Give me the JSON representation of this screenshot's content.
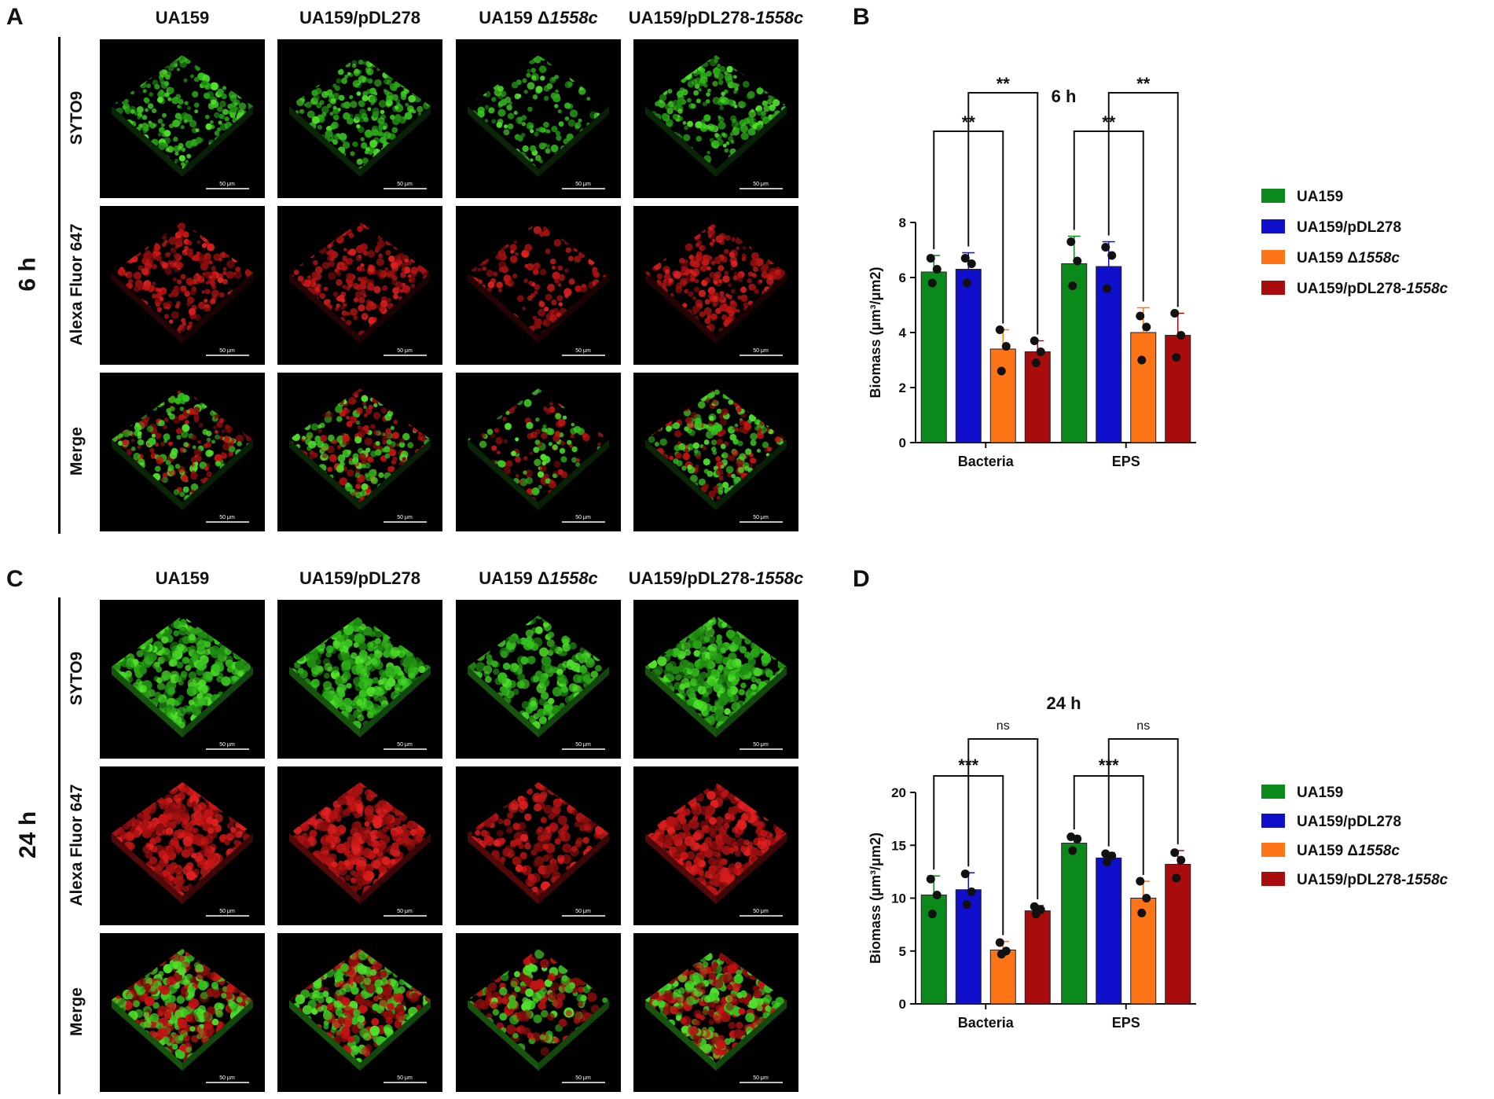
{
  "panel_letters": {
    "a": "A",
    "b": "B",
    "c": "C",
    "d": "D"
  },
  "image_grid": {
    "columns": [
      "UA159",
      "UA159/pDL278",
      "UA159 Δ",
      "UA159/pDL278-"
    ],
    "columns_italic_suffix": [
      "",
      "",
      "1558c",
      "1558c"
    ],
    "rows": [
      "SYTO9",
      "Alexa Fluor  647",
      "Merge"
    ],
    "scale_bar_label": "50 μm",
    "blocks": [
      {
        "time": "6 h"
      },
      {
        "time": "24 h"
      }
    ]
  },
  "chart_data": [
    {
      "type": "bar",
      "title": "6 h",
      "ylabel": "Biomass (μm³/μm2)",
      "categories": [
        "Bacteria",
        "EPS"
      ],
      "ylim": [
        0,
        8
      ],
      "yticks": [
        0,
        2,
        4,
        6,
        8
      ],
      "series": [
        {
          "name": "UA159",
          "name_italic": "",
          "color": "#0b8a1b",
          "values": [
            6.2,
            6.5
          ],
          "errors": [
            0.6,
            1.0
          ],
          "points": [
            [
              6.7,
              6.3,
              5.8
            ],
            [
              7.3,
              6.6,
              5.7
            ]
          ]
        },
        {
          "name": "UA159/pDL278",
          "name_italic": "",
          "color": "#1010cc",
          "values": [
            6.3,
            6.4
          ],
          "errors": [
            0.6,
            0.9
          ],
          "points": [
            [
              6.7,
              6.5,
              5.8
            ],
            [
              7.1,
              6.8,
              5.6
            ]
          ]
        },
        {
          "name": "UA159 Δ",
          "name_italic": "1558c",
          "color": "#ff7417",
          "values": [
            3.4,
            4.0
          ],
          "errors": [
            0.7,
            0.9
          ],
          "points": [
            [
              4.1,
              3.5,
              2.6
            ],
            [
              4.6,
              4.2,
              3.0
            ]
          ]
        },
        {
          "name": "UA159/pDL278-",
          "name_italic": "1558c",
          "color": "#a80c0c",
          "values": [
            3.3,
            3.9
          ],
          "errors": [
            0.4,
            0.8
          ],
          "points": [
            [
              3.7,
              3.3,
              2.9
            ],
            [
              4.7,
              3.9,
              3.1
            ]
          ]
        }
      ],
      "significance": [
        {
          "group": 0,
          "from": 0,
          "to": 2,
          "label": "**",
          "level": 1
        },
        {
          "group": 0,
          "from": 1,
          "to": 3,
          "label": "**",
          "level": 2
        },
        {
          "group": 1,
          "from": 0,
          "to": 2,
          "label": "**",
          "level": 1
        },
        {
          "group": 1,
          "from": 1,
          "to": 3,
          "label": "**",
          "level": 2
        }
      ]
    },
    {
      "type": "bar",
      "title": "24 h",
      "ylabel": "Biomass (μm³/μm2)",
      "categories": [
        "Bacteria",
        "EPS"
      ],
      "ylim": [
        0,
        20
      ],
      "yticks": [
        0,
        5,
        10,
        15,
        20
      ],
      "series": [
        {
          "name": "UA159",
          "name_italic": "",
          "color": "#0b8a1b",
          "values": [
            10.3,
            15.2
          ],
          "errors": [
            1.8,
            0.7
          ],
          "points": [
            [
              11.8,
              10.3,
              8.5
            ],
            [
              15.8,
              15.6,
              14.5
            ]
          ]
        },
        {
          "name": "UA159/pDL278",
          "name_italic": "",
          "color": "#1010cc",
          "values": [
            10.8,
            13.8
          ],
          "errors": [
            1.6,
            0.5
          ],
          "points": [
            [
              12.3,
              10.6,
              9.4
            ],
            [
              14.2,
              14.0,
              13.4
            ]
          ]
        },
        {
          "name": "UA159 Δ",
          "name_italic": "1558c",
          "color": "#ff7417",
          "values": [
            5.1,
            10.0
          ],
          "errors": [
            0.8,
            1.6
          ],
          "points": [
            [
              5.8,
              5.0,
              4.7
            ],
            [
              11.6,
              10.0,
              8.6
            ]
          ]
        },
        {
          "name": "UA159/pDL278-",
          "name_italic": "1558c",
          "color": "#a80c0c",
          "values": [
            8.8,
            13.2
          ],
          "errors": [
            0.5,
            1.3
          ],
          "points": [
            [
              9.2,
              8.9,
              8.5
            ],
            [
              14.3,
              13.6,
              11.9
            ]
          ]
        }
      ],
      "significance": [
        {
          "group": 0,
          "from": 0,
          "to": 2,
          "label": "***",
          "level": 1
        },
        {
          "group": 0,
          "from": 1,
          "to": 3,
          "label": "ns",
          "level": 2
        },
        {
          "group": 1,
          "from": 0,
          "to": 2,
          "label": "***",
          "level": 1
        },
        {
          "group": 1,
          "from": 1,
          "to": 3,
          "label": "ns",
          "level": 2
        }
      ]
    }
  ]
}
